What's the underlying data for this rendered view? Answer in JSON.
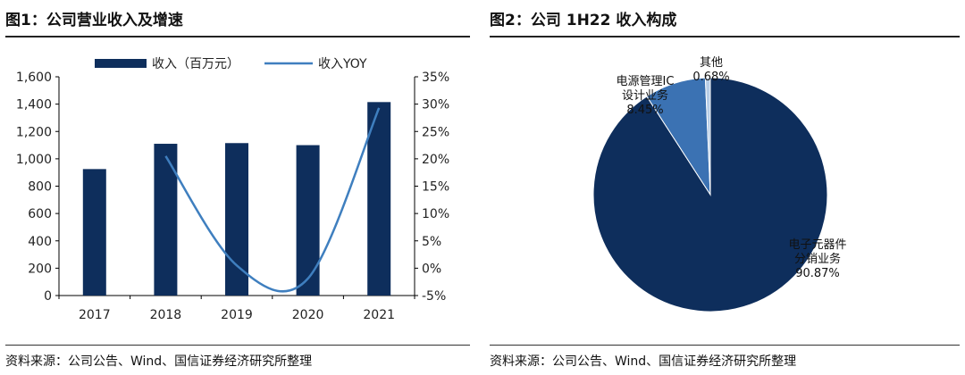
{
  "colors": {
    "navy": "#0e2e5c",
    "lineblue": "#3f7fbf",
    "midblue": "#3b72b3",
    "lightblue": "#b7cde6",
    "axis": "#000000"
  },
  "left": {
    "title": "图1：公司营业收入及增速",
    "source": "资料来源：公司公告、Wind、国信证券经济研究所整理"
  },
  "right": {
    "title": "图2：公司 1H22 收入构成",
    "source": "资料来源：公司公告、Wind、国信证券经济研究所整理"
  },
  "chart_data": [
    {
      "type": "bar",
      "title": "",
      "categories": [
        "2017",
        "2018",
        "2019",
        "2020",
        "2021"
      ],
      "series": [
        {
          "name": "收入（百万元）",
          "kind": "bar",
          "axis": "left",
          "values": [
            925,
            1110,
            1115,
            1100,
            1415
          ]
        },
        {
          "name": "收入YOY",
          "kind": "line",
          "axis": "right",
          "values": [
            null,
            20.5,
            0.5,
            -1.9,
            29.3
          ]
        }
      ],
      "ylim": [
        0,
        1600
      ],
      "yticks": [
        "0",
        "200",
        "400",
        "600",
        "800",
        "1,000",
        "1,200",
        "1,400",
        "1,600"
      ],
      "y2lim": [
        -5,
        35
      ],
      "y2ticks": [
        "-5%",
        "0%",
        "5%",
        "10%",
        "15%",
        "20%",
        "25%",
        "30%",
        "35%"
      ],
      "legend": "top",
      "grid": false
    },
    {
      "type": "pie",
      "title": "",
      "slices": [
        {
          "label_lines": [
            "电子元器件",
            "分销业务",
            "90.87%"
          ],
          "value": 90.87,
          "color": "#0e2e5c"
        },
        {
          "label_lines": [
            "电源管理IC",
            "设计业务",
            "8.45%"
          ],
          "value": 8.45,
          "color": "#3b72b3"
        },
        {
          "label_lines": [
            "其他",
            "0.68%"
          ],
          "value": 0.68,
          "color": "#b7cde6"
        }
      ]
    }
  ]
}
